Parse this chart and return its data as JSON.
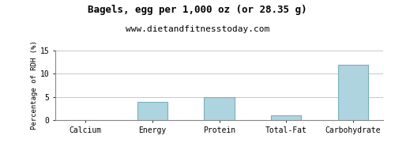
{
  "title": "Bagels, egg per 1,000 oz (or 28.35 g)",
  "subtitle": "www.dietandfitnesstoday.com",
  "categories": [
    "Calcium",
    "Energy",
    "Protein",
    "Total-Fat",
    "Carbohydrate"
  ],
  "values": [
    0,
    4.0,
    5.0,
    1.1,
    12.0
  ],
  "bar_color": "#aed4e0",
  "bar_edge_color": "#7aafc0",
  "ylabel": "Percentage of RDH (%)",
  "ylim": [
    0,
    15
  ],
  "yticks": [
    0,
    5,
    10,
    15
  ],
  "background_color": "#ffffff",
  "grid_color": "#c8c8c8",
  "title_fontsize": 9,
  "subtitle_fontsize": 8,
  "ylabel_fontsize": 6.5,
  "tick_fontsize": 7,
  "border_color": "#888888"
}
